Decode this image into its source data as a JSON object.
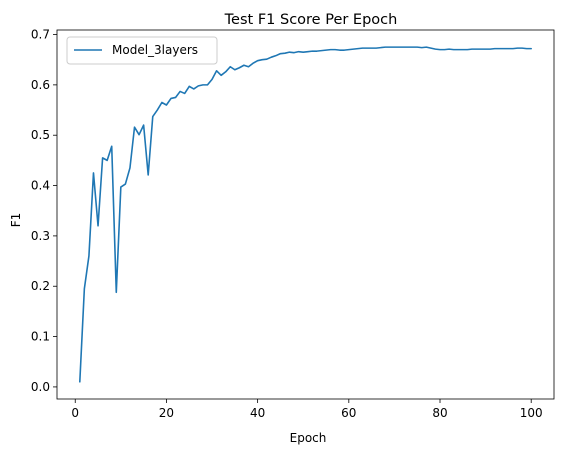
{
  "chart_data": {
    "type": "line",
    "title": "Test F1 Score Per Epoch",
    "xlabel": "Epoch",
    "ylabel": "F1",
    "xlim": [
      -4,
      105
    ],
    "ylim": [
      -0.024,
      0.709
    ],
    "xticks": [
      0,
      20,
      40,
      60,
      80,
      100
    ],
    "yticks": [
      0.0,
      0.1,
      0.2,
      0.3,
      0.4,
      0.5,
      0.6,
      0.7
    ],
    "ytick_labels": [
      "0.0",
      "0.1",
      "0.2",
      "0.3",
      "0.4",
      "0.5",
      "0.6",
      "0.7"
    ],
    "grid": false,
    "legend_position": "upper-left",
    "series": [
      {
        "name": "Model_3layers",
        "color": "#1f77b4",
        "x": [
          1,
          2,
          3,
          4,
          5,
          6,
          7,
          8,
          9,
          10,
          11,
          12,
          13,
          14,
          15,
          16,
          17,
          18,
          19,
          20,
          21,
          22,
          23,
          24,
          25,
          26,
          27,
          28,
          29,
          30,
          31,
          32,
          33,
          34,
          35,
          36,
          37,
          38,
          39,
          40,
          41,
          42,
          43,
          44,
          45,
          46,
          47,
          48,
          49,
          50,
          51,
          52,
          53,
          54,
          55,
          56,
          57,
          58,
          59,
          60,
          61,
          62,
          63,
          64,
          65,
          66,
          67,
          68,
          69,
          70,
          71,
          72,
          73,
          74,
          75,
          76,
          77,
          78,
          79,
          80,
          81,
          82,
          83,
          84,
          85,
          86,
          87,
          88,
          89,
          90,
          91,
          92,
          93,
          94,
          95,
          96,
          97,
          98,
          99,
          100
        ],
        "y": [
          0.01,
          0.195,
          0.26,
          0.425,
          0.32,
          0.455,
          0.45,
          0.478,
          0.188,
          0.397,
          0.403,
          0.435,
          0.516,
          0.501,
          0.52,
          0.421,
          0.537,
          0.55,
          0.565,
          0.56,
          0.573,
          0.575,
          0.587,
          0.583,
          0.597,
          0.592,
          0.598,
          0.6,
          0.6,
          0.611,
          0.628,
          0.619,
          0.626,
          0.636,
          0.63,
          0.634,
          0.639,
          0.636,
          0.643,
          0.648,
          0.65,
          0.651,
          0.655,
          0.658,
          0.662,
          0.663,
          0.665,
          0.664,
          0.666,
          0.665,
          0.666,
          0.667,
          0.667,
          0.668,
          0.669,
          0.67,
          0.67,
          0.669,
          0.669,
          0.67,
          0.671,
          0.672,
          0.673,
          0.673,
          0.673,
          0.673,
          0.674,
          0.675,
          0.675,
          0.675,
          0.675,
          0.675,
          0.675,
          0.675,
          0.675,
          0.674,
          0.675,
          0.673,
          0.671,
          0.67,
          0.67,
          0.671,
          0.67,
          0.67,
          0.67,
          0.67,
          0.671,
          0.671,
          0.671,
          0.671,
          0.671,
          0.672,
          0.672,
          0.672,
          0.672,
          0.672,
          0.673,
          0.673,
          0.672,
          0.672
        ]
      }
    ]
  }
}
